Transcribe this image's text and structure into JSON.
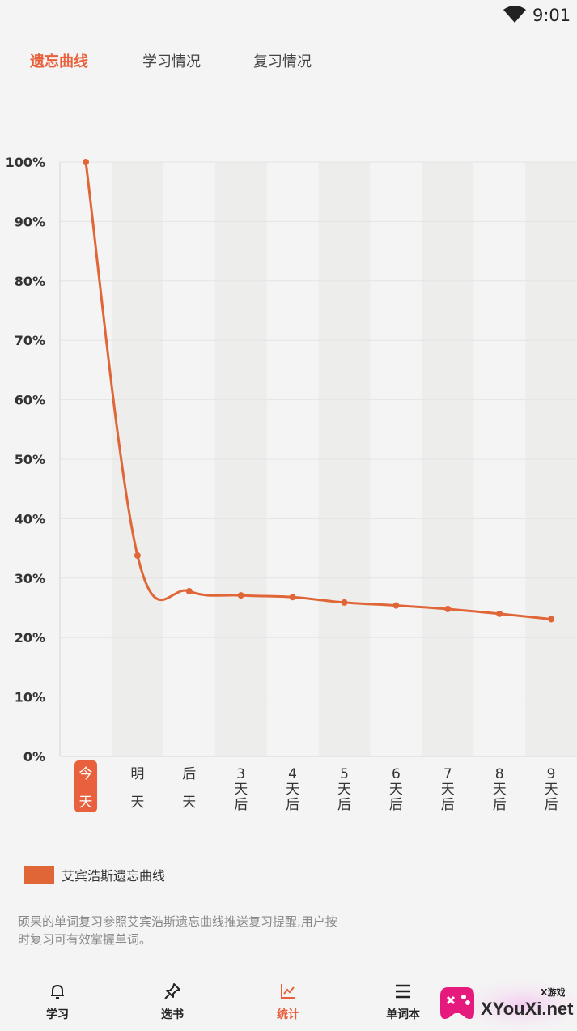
{
  "status_bar": {
    "time": "9:01"
  },
  "tabs": [
    {
      "label": "遗忘曲线",
      "active": true
    },
    {
      "label": "学习情况",
      "active": false
    },
    {
      "label": "复习情况",
      "active": false
    }
  ],
  "chart_data": {
    "type": "line",
    "title": "",
    "xlabel": "",
    "ylabel": "",
    "categories": [
      [
        "今",
        "天"
      ],
      [
        "明",
        "天"
      ],
      [
        "后",
        "天"
      ],
      [
        "3",
        "天",
        "后"
      ],
      [
        "4",
        "天",
        "后"
      ],
      [
        "5",
        "天",
        "后"
      ],
      [
        "6",
        "天",
        "后"
      ],
      [
        "7",
        "天",
        "后"
      ],
      [
        "8",
        "天",
        "后"
      ],
      [
        "9",
        "天",
        "后"
      ]
    ],
    "highlighted_category": 0,
    "y_ticks": [
      "0%",
      "10%",
      "20%",
      "30%",
      "40%",
      "50%",
      "60%",
      "70%",
      "80%",
      "90%",
      "100%"
    ],
    "ylim": [
      0,
      100
    ],
    "series": [
      {
        "name": "艾宾浩斯遗忘曲线",
        "values": [
          100,
          33.8,
          27.8,
          27.1,
          26.8,
          25.9,
          25.4,
          24.8,
          24.0,
          23.1
        ]
      }
    ],
    "legend_position": "bottom-left",
    "line_color": "#e06637",
    "highlight_color": "#e8603c"
  },
  "legend": {
    "label": "艾宾浩斯遗忘曲线"
  },
  "note": "硕果的单词复习参照艾宾浩斯遗忘曲线推送复习提醒,用户按时复习可有效掌握单词。",
  "bottom_nav": [
    {
      "label": "学习",
      "icon": "bell-icon",
      "active": false
    },
    {
      "label": "选书",
      "icon": "pin-icon",
      "active": false
    },
    {
      "label": "统计",
      "icon": "chart-icon",
      "active": true
    },
    {
      "label": "单词本",
      "icon": "list-icon",
      "active": false
    }
  ],
  "watermark": {
    "text": "XYouXi.net",
    "small": "X游戏"
  },
  "colors": {
    "accent": "#e8603c",
    "background": "#f4f4f4"
  }
}
